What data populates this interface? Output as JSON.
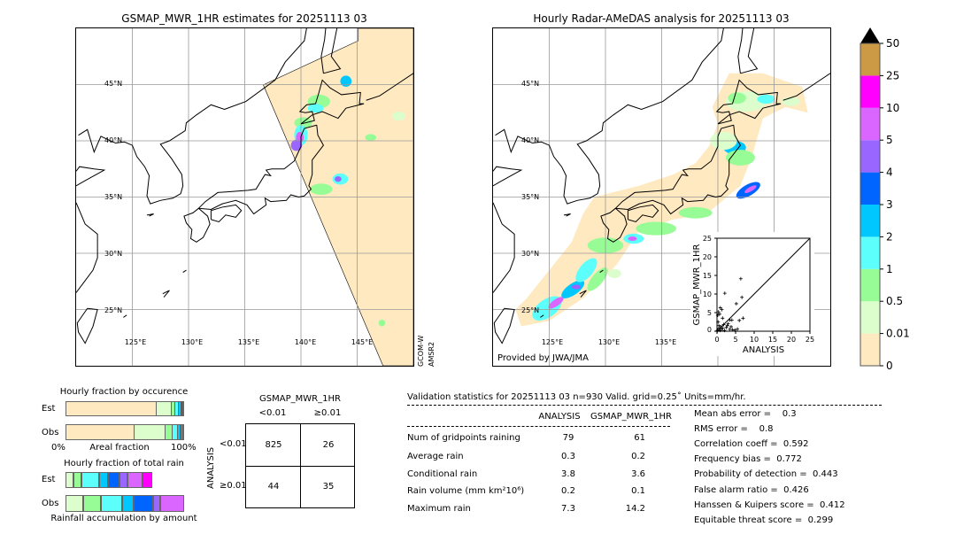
{
  "left_map": {
    "title": "GSMAP_MWR_1HR estimates for 20251113 03",
    "side_label_1": "GCOM-W",
    "side_label_2": "AMSR2"
  },
  "right_map": {
    "title": "Hourly Radar-AMeDAS analysis for 20251113 03",
    "credit": "Provided by JWA/JMA"
  },
  "map_ticks": {
    "lon": [
      "125°E",
      "130°E",
      "135°E",
      "140°E",
      "145°E"
    ],
    "lat": [
      "45°N",
      "40°N",
      "35°N",
      "30°N",
      "25°N"
    ]
  },
  "colorbar": {
    "labels": [
      "0",
      "0.01",
      "0.5",
      "1",
      "2",
      "3",
      "4",
      "5",
      "10",
      "25",
      "50"
    ],
    "colors": [
      "#ffe9c0",
      "#dcfdcc",
      "#98fc96",
      "#5cfffb",
      "#00c8ff",
      "#0064ff",
      "#9966ff",
      "#db66ff",
      "#ff00ff",
      "#cc9944"
    ],
    "extend_color": "#000000"
  },
  "scatter": {
    "xlabel": "ANALYSIS",
    "ylabel": "GSMAP_MWR_1HR",
    "ticks": [
      "0",
      "5",
      "10",
      "15",
      "20",
      "25"
    ],
    "range": [
      0,
      25
    ],
    "points": [
      [
        6.4,
        14.1
      ],
      [
        2.1,
        10.2
      ],
      [
        6.7,
        9.1
      ],
      [
        5.2,
        7.4
      ],
      [
        0.9,
        6.3
      ],
      [
        1.3,
        5.8
      ],
      [
        0.4,
        5.2
      ],
      [
        0.2,
        4.3
      ],
      [
        0.7,
        4.6
      ],
      [
        1.5,
        3.5
      ],
      [
        3.5,
        3.0
      ],
      [
        4.0,
        3.0
      ],
      [
        6.0,
        2.9
      ],
      [
        7.0,
        3.5
      ],
      [
        0.3,
        2.5
      ],
      [
        0.5,
        1.5
      ],
      [
        1.0,
        1.2
      ],
      [
        1.5,
        0.8
      ],
      [
        2.5,
        1.0
      ],
      [
        3.0,
        2.0
      ],
      [
        3.4,
        0.5
      ],
      [
        4.2,
        0.4
      ],
      [
        4.8,
        0.3
      ],
      [
        5.5,
        0.6
      ],
      [
        0.2,
        0.3
      ],
      [
        0.8,
        0.2
      ],
      [
        1.2,
        0.5
      ],
      [
        2.0,
        0.2
      ],
      [
        0.5,
        0.8
      ],
      [
        2.8,
        1.5
      ],
      [
        0.1,
        0.1
      ],
      [
        1.8,
        1.8
      ],
      [
        3.8,
        1.2
      ]
    ]
  },
  "occurrence": {
    "title": "Hourly fraction by occurence",
    "est_label": "Est",
    "obs_label": "Obs",
    "axis_left": "0%",
    "axis_mid": "Areal fraction",
    "axis_right": "100%",
    "est": [
      76.9,
      13.3,
      3.0,
      3.0,
      2.5,
      1.3
    ],
    "obs": [
      58.6,
      26.1,
      6.3,
      4.5,
      2.0,
      1.25,
      1.25
    ],
    "est_colors": [
      "#ffe9c0",
      "#dcfdcc",
      "#98fc96",
      "#5cfffb",
      "#00c8ff",
      "#0064ff"
    ],
    "obs_colors": [
      "#ffe9c0",
      "#dcfdcc",
      "#98fc96",
      "#5cfffb",
      "#00c8ff",
      "#0064ff",
      "#9966ff"
    ]
  },
  "total_rain": {
    "title": "Hourly fraction of total rain",
    "est_label": "Est",
    "obs_label": "Obs",
    "axis_label": "Rainfall accumulation by amount",
    "est": [
      6.8,
      6.3,
      15.0,
      8.0,
      9.3,
      6.8,
      13.0,
      8.0
    ],
    "obs": [
      15.0,
      15.0,
      18.0,
      9.8,
      16.0,
      6.0,
      20.2
    ],
    "est_colors": [
      "#dcfdcc",
      "#98fc96",
      "#5cfffb",
      "#00c8ff",
      "#0064ff",
      "#9966ff",
      "#db66ff",
      "#ff00ff"
    ],
    "obs_colors": [
      "#dcfdcc",
      "#98fc96",
      "#5cfffb",
      "#00c8ff",
      "#0064ff",
      "#9966ff",
      "#db66ff"
    ]
  },
  "contingency": {
    "col_title": "GSMAP_MWR_1HR",
    "col_lt": "<0.01",
    "col_ge": "≥0.01",
    "row_title": "ANALYSIS",
    "row_lt": "<0.01",
    "row_ge": "≥0.01",
    "cells": [
      "825",
      "26",
      "44",
      "35"
    ]
  },
  "stats": {
    "title": "Validation statistics for 20251113 03  n=930 Valid. grid=0.25˚ Units=mm/hr.",
    "col_analysis": "ANALYSIS",
    "col_gsmap": "GSMAP_MWR_1HR",
    "rows": [
      {
        "label": "Num of gridpoints raining",
        "analysis": "79",
        "gsmap": "61"
      },
      {
        "label": "Average rain",
        "analysis": "0.3",
        "gsmap": "0.2"
      },
      {
        "label": "Conditional rain",
        "analysis": "3.8",
        "gsmap": "3.6"
      },
      {
        "label": "Rain volume (mm km²10⁶)",
        "analysis": "0.2",
        "gsmap": "0.1"
      },
      {
        "label": "Maximum rain",
        "analysis": "7.3",
        "gsmap": "14.2"
      }
    ],
    "scores": [
      "Mean abs error =    0.3",
      "RMS error =    0.8",
      "Correlation coeff =  0.592",
      "Frequency bias =  0.772",
      "Probability of detection =  0.443",
      "False alarm ratio =  0.426",
      "Hanssen & Kuipers score =  0.412",
      "Equitable threat score =  0.299"
    ]
  }
}
